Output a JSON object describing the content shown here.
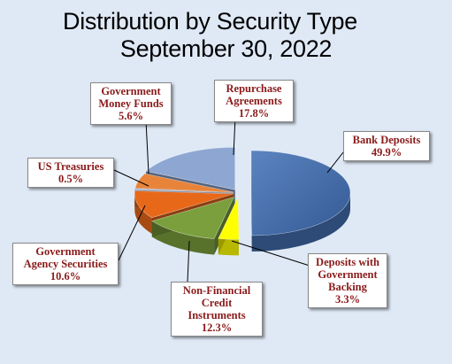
{
  "title_line1": "Distribution by Security Type",
  "title_line2": "September 30, 2022",
  "chart_data": {
    "type": "pie",
    "title": "Distribution by Security Type September 30, 2022",
    "slices": [
      {
        "name_lines": [
          "Bank Deposits"
        ],
        "value": 49.9,
        "value_label": "49.9%",
        "color": "#3f68a4"
      },
      {
        "name_lines": [
          "Deposits with",
          "Government",
          "Backing"
        ],
        "value": 3.3,
        "value_label": "3.3%",
        "color": "#ffff00"
      },
      {
        "name_lines": [
          "Non-Financial",
          "Credit",
          "Instruments"
        ],
        "value": 12.3,
        "value_label": "12.3%",
        "color": "#7a9f3c"
      },
      {
        "name_lines": [
          "Government",
          "Agency Securities"
        ],
        "value": 10.6,
        "value_label": "10.6%",
        "color": "#e8681a"
      },
      {
        "name_lines": [
          "US Treasuries"
        ],
        "value": 0.5,
        "value_label": "0.5%",
        "color": "#a8b8d8"
      },
      {
        "name_lines": [
          "Government",
          "Money Funds"
        ],
        "value": 5.6,
        "value_label": "5.6%",
        "color": "#e8843a"
      },
      {
        "name_lines": [
          "Repurchase",
          "Agreements"
        ],
        "value": 17.8,
        "value_label": "17.8%",
        "color": "#8ea7d2"
      }
    ]
  }
}
